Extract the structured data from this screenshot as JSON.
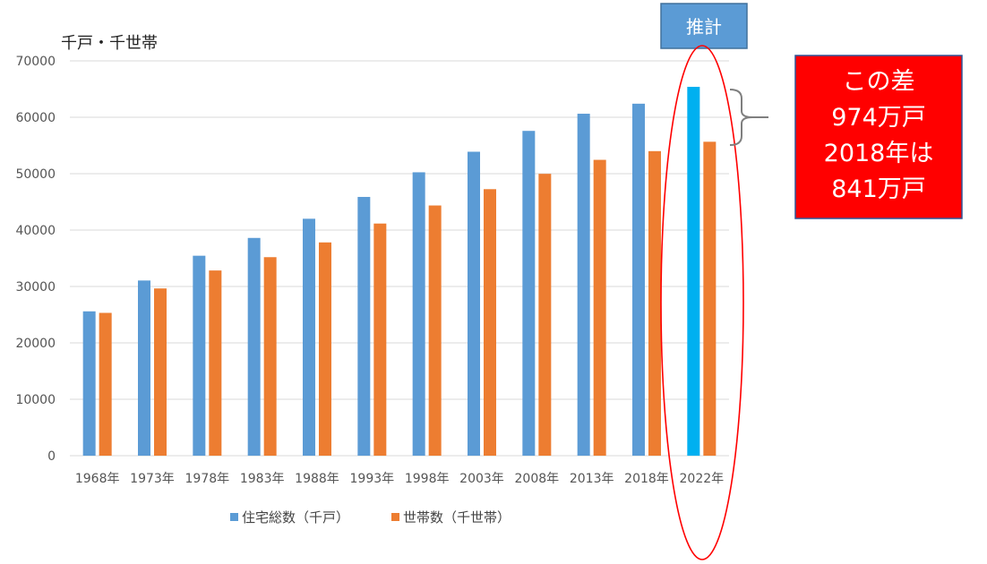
{
  "chart_data": {
    "type": "bar",
    "unit_label": "千戸・千世帯",
    "categories": [
      "1968年",
      "1973年",
      "1978年",
      "1983年",
      "1988年",
      "1993年",
      "1998年",
      "2003年",
      "2008年",
      "2013年",
      "2018年",
      "2022年"
    ],
    "series": [
      {
        "name": "住宅総数（千戸）",
        "color": "#5b9bd5",
        "values": [
          25591,
          31059,
          35451,
          38607,
          42007,
          45879,
          50246,
          53891,
          57586,
          60629,
          62407,
          65400
        ]
      },
      {
        "name": "世帯数（千世帯）",
        "color": "#ed7d31",
        "values": [
          25320,
          29651,
          32835,
          35197,
          37812,
          41159,
          44360,
          47255,
          49973,
          52453,
          53997,
          55660
        ]
      }
    ],
    "highlight": {
      "category_index": 11,
      "series_index": 0,
      "color": "#00b0f0"
    },
    "ylim": [
      0,
      70000
    ],
    "yticks": [
      0,
      10000,
      20000,
      30000,
      40000,
      50000,
      60000,
      70000
    ],
    "grid": true,
    "legend_position": "bottom",
    "annotations": {
      "estimate_label": "推計",
      "estimate_box_color": "#5b9bd5",
      "ellipse_color": "#ff0000",
      "callout_color": "#ff0000",
      "callout_lines": [
        "この差",
        "974万戸",
        "2018年は",
        "841万戸"
      ]
    }
  }
}
